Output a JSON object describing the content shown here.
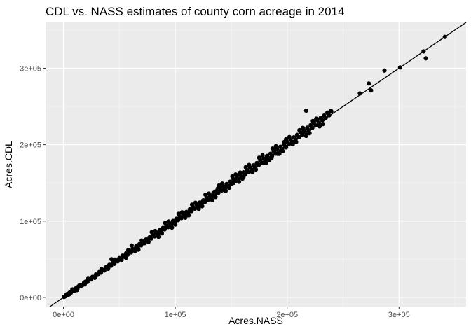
{
  "chart_data": {
    "type": "scatter",
    "title": "CDL vs. NASS estimates of county corn acreage in 2014",
    "xlabel": "Acres.NASS",
    "ylabel": "Acres.CDL",
    "xlim": [
      -16000,
      360000
    ],
    "ylim": [
      -12000,
      360000
    ],
    "x_ticks": [
      {
        "value": 0,
        "label": "0e+00"
      },
      {
        "value": 100000,
        "label": "1e+05"
      },
      {
        "value": 200000,
        "label": "2e+05"
      },
      {
        "value": 300000,
        "label": "3e+05"
      }
    ],
    "y_ticks": [
      {
        "value": 0,
        "label": "0e+00"
      },
      {
        "value": 100000,
        "label": "1e+05"
      },
      {
        "value": 200000,
        "label": "2e+05"
      },
      {
        "value": 300000,
        "label": "3e+05"
      }
    ],
    "grid": true,
    "reference_line": {
      "slope": 1,
      "intercept": 0
    },
    "points": [
      [
        500,
        600
      ],
      [
        1500,
        1400
      ],
      [
        2500,
        3000
      ],
      [
        3500,
        2800
      ],
      [
        4500,
        5000
      ],
      [
        5500,
        6200
      ],
      [
        6500,
        5800
      ],
      [
        7500,
        8000
      ],
      [
        8500,
        9500
      ],
      [
        9500,
        8600
      ],
      [
        10500,
        11200
      ],
      [
        11500,
        12600
      ],
      [
        12500,
        11500
      ],
      [
        13500,
        14500
      ],
      [
        14500,
        16000
      ],
      [
        15500,
        14800
      ],
      [
        17000,
        16200
      ],
      [
        18500,
        19600
      ],
      [
        20000,
        20800
      ],
      [
        21500,
        20200
      ],
      [
        23000,
        23800
      ],
      [
        24500,
        23600
      ],
      [
        26000,
        27000
      ],
      [
        27500,
        26400
      ],
      [
        29000,
        30000
      ],
      [
        30500,
        29500
      ],
      [
        32000,
        33200
      ],
      [
        33500,
        32400
      ],
      [
        35000,
        36200
      ],
      [
        36500,
        35200
      ],
      [
        38000,
        39500
      ],
      [
        39500,
        38200
      ],
      [
        41000,
        42600
      ],
      [
        42500,
        41400
      ],
      [
        44000,
        45200
      ],
      [
        45500,
        44000
      ],
      [
        47000,
        48800
      ],
      [
        48500,
        47300
      ],
      [
        50000,
        51500
      ],
      [
        51500,
        50200
      ],
      [
        53000,
        54800
      ],
      [
        54500,
        53100
      ],
      [
        56000,
        57600
      ],
      [
        57500,
        56000
      ],
      [
        59000,
        60800
      ],
      [
        60500,
        59000
      ],
      [
        62000,
        63500
      ],
      [
        63500,
        62100
      ],
      [
        65000,
        66900
      ],
      [
        66500,
        65200
      ],
      [
        68000,
        69800
      ],
      [
        69500,
        68200
      ],
      [
        71000,
        72600
      ],
      [
        72500,
        71000
      ],
      [
        74000,
        76000
      ],
      [
        75500,
        74200
      ],
      [
        77000,
        78800
      ],
      [
        78500,
        77100
      ],
      [
        80000,
        82000
      ],
      [
        81500,
        80000
      ],
      [
        83000,
        85000
      ],
      [
        84500,
        83200
      ],
      [
        86000,
        88200
      ],
      [
        87500,
        86000
      ],
      [
        89000,
        91000
      ],
      [
        90500,
        89200
      ],
      [
        92000,
        94200
      ],
      [
        93500,
        92000
      ],
      [
        95000,
        97000
      ],
      [
        96500,
        95000
      ],
      [
        98000,
        100200
      ],
      [
        99500,
        98000
      ],
      [
        101000,
        103000
      ],
      [
        102500,
        101200
      ],
      [
        104000,
        106000
      ],
      [
        105500,
        104000
      ],
      [
        107000,
        109500
      ],
      [
        108500,
        107000
      ],
      [
        110000,
        112000
      ],
      [
        111500,
        110200
      ],
      [
        113000,
        115400
      ],
      [
        114500,
        113000
      ],
      [
        116000,
        118000
      ],
      [
        117500,
        116200
      ],
      [
        119000,
        121500
      ],
      [
        120500,
        119000
      ],
      [
        122000,
        124300
      ],
      [
        123500,
        122000
      ],
      [
        125000,
        127200
      ],
      [
        126500,
        125000
      ],
      [
        128000,
        130500
      ],
      [
        129500,
        128000
      ],
      [
        131000,
        133400
      ],
      [
        132500,
        131000
      ],
      [
        134000,
        136500
      ],
      [
        135500,
        134200
      ],
      [
        137000,
        139400
      ],
      [
        138500,
        137000
      ],
      [
        140000,
        142500
      ],
      [
        141500,
        140000
      ],
      [
        143000,
        145500
      ],
      [
        144500,
        143200
      ],
      [
        146000,
        148500
      ],
      [
        147500,
        146000
      ],
      [
        149000,
        151500
      ],
      [
        150500,
        149200
      ],
      [
        152000,
        154800
      ],
      [
        153500,
        152000
      ],
      [
        155000,
        157500
      ],
      [
        156500,
        155200
      ],
      [
        158000,
        160800
      ],
      [
        159500,
        158000
      ],
      [
        161000,
        163800
      ],
      [
        162500,
        161000
      ],
      [
        164000,
        166800
      ],
      [
        165500,
        164200
      ],
      [
        167000,
        169900
      ],
      [
        168500,
        167000
      ],
      [
        170000,
        173000
      ],
      [
        171500,
        170200
      ],
      [
        173000,
        176000
      ],
      [
        174500,
        173200
      ],
      [
        176000,
        179000
      ],
      [
        177500,
        176100
      ],
      [
        179000,
        182000
      ],
      [
        180500,
        179300
      ],
      [
        182000,
        185200
      ],
      [
        183500,
        182200
      ],
      [
        185000,
        188000
      ],
      [
        186500,
        185300
      ],
      [
        188000,
        191200
      ],
      [
        189500,
        188300
      ],
      [
        191000,
        194200
      ],
      [
        192500,
        191300
      ],
      [
        194000,
        197300
      ],
      [
        195500,
        194500
      ],
      [
        197000,
        200400
      ],
      [
        198500,
        197500
      ],
      [
        200000,
        203500
      ],
      [
        201500,
        200600
      ],
      [
        203000,
        206500
      ],
      [
        204500,
        203600
      ],
      [
        206000,
        209600
      ],
      [
        207500,
        206700
      ],
      [
        209000,
        212800
      ],
      [
        210500,
        209800
      ],
      [
        212000,
        216000
      ],
      [
        213500,
        212800
      ],
      [
        215000,
        219000
      ],
      [
        216500,
        216000
      ],
      [
        218000,
        222200
      ],
      [
        219500,
        218800
      ],
      [
        221000,
        225500
      ],
      [
        222500,
        222000
      ],
      [
        224000,
        228600
      ],
      [
        225500,
        225200
      ],
      [
        227000,
        232000
      ],
      [
        228500,
        228000
      ],
      [
        230000,
        235000
      ],
      [
        231500,
        232000
      ],
      [
        233000,
        238000
      ],
      [
        234500,
        235200
      ],
      [
        236000,
        241500
      ],
      [
        237500,
        238400
      ],
      [
        239000,
        244500
      ],
      [
        3000,
        4200
      ],
      [
        5000,
        3900
      ],
      [
        8000,
        10500
      ],
      [
        12000,
        9600
      ],
      [
        19000,
        17200
      ],
      [
        22000,
        24500
      ],
      [
        28000,
        25600
      ],
      [
        34000,
        37000
      ],
      [
        40000,
        37500
      ],
      [
        46000,
        49500
      ],
      [
        52000,
        49000
      ],
      [
        58000,
        62000
      ],
      [
        64000,
        60800
      ],
      [
        70000,
        74500
      ],
      [
        76000,
        72600
      ],
      [
        82000,
        87000
      ],
      [
        88000,
        84000
      ],
      [
        94000,
        99500
      ],
      [
        100000,
        95500
      ],
      [
        106000,
        111500
      ],
      [
        112000,
        107500
      ],
      [
        118000,
        124000
      ],
      [
        124000,
        119500
      ],
      [
        130000,
        136000
      ],
      [
        136000,
        131500
      ],
      [
        142000,
        149000
      ],
      [
        148000,
        143500
      ],
      [
        154000,
        161000
      ],
      [
        160000,
        155500
      ],
      [
        166000,
        173500
      ],
      [
        172000,
        167500
      ],
      [
        178000,
        186000
      ],
      [
        184000,
        179500
      ],
      [
        190000,
        198000
      ],
      [
        196000,
        191500
      ],
      [
        202000,
        210000
      ],
      [
        208000,
        203500
      ],
      [
        214000,
        222000
      ],
      [
        220000,
        215000
      ],
      [
        226000,
        234000
      ],
      [
        232000,
        227000
      ],
      [
        43000,
        50000
      ],
      [
        56000,
        52000
      ],
      [
        61000,
        68000
      ],
      [
        67000,
        62500
      ],
      [
        79000,
        85500
      ],
      [
        85000,
        79500
      ],
      [
        91000,
        97500
      ],
      [
        97000,
        91500
      ],
      [
        103000,
        109500
      ],
      [
        109000,
        104500
      ],
      [
        115000,
        121500
      ],
      [
        121000,
        116000
      ],
      [
        127000,
        134500
      ],
      [
        133000,
        127500
      ],
      [
        139000,
        146500
      ],
      [
        145000,
        139500
      ],
      [
        151000,
        158500
      ],
      [
        157000,
        151500
      ],
      [
        163000,
        170500
      ],
      [
        169000,
        164000
      ],
      [
        175000,
        183000
      ],
      [
        181000,
        176000
      ],
      [
        187000,
        195000
      ],
      [
        193000,
        188000
      ],
      [
        199000,
        207000
      ],
      [
        205000,
        200500
      ],
      [
        211000,
        219000
      ],
      [
        217000,
        211500
      ],
      [
        223000,
        231000
      ],
      [
        229000,
        224000
      ],
      [
        135000,
        137500
      ],
      [
        138000,
        142500
      ],
      [
        152000,
        150000
      ],
      [
        158000,
        163500
      ],
      [
        161000,
        158000
      ],
      [
        186000,
        182500
      ],
      [
        188500,
        192500
      ],
      [
        191500,
        188000
      ],
      [
        197500,
        203500
      ],
      [
        199000,
        196500
      ],
      [
        217000,
        244500
      ],
      [
        236000,
        242000
      ],
      [
        239500,
        243500
      ],
      [
        265000,
        267000
      ],
      [
        273000,
        280000
      ],
      [
        275000,
        271000
      ],
      [
        287000,
        297000
      ],
      [
        301000,
        301000
      ],
      [
        322000,
        322000
      ],
      [
        324000,
        313000
      ],
      [
        341000,
        341000
      ]
    ]
  }
}
